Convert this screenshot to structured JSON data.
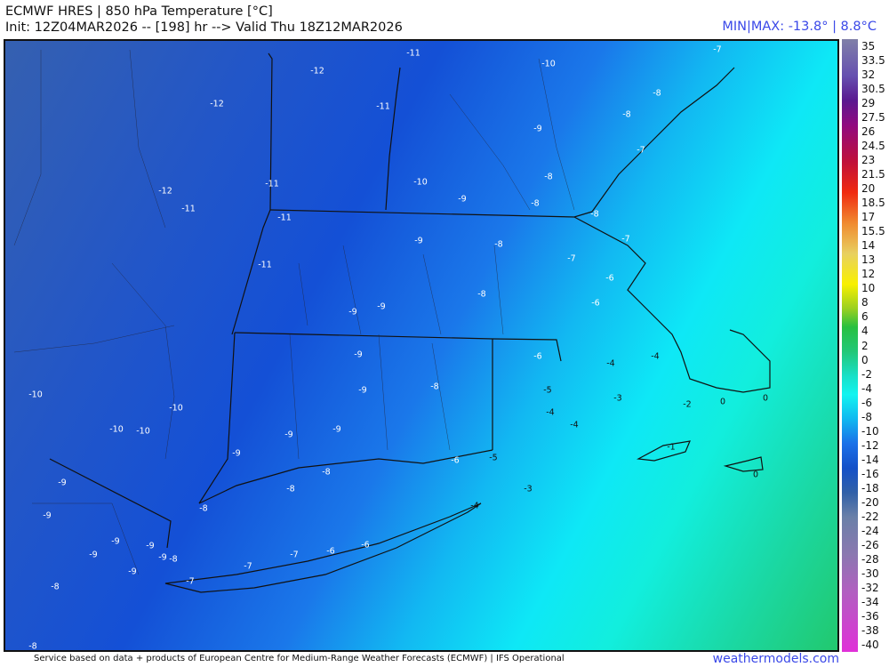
{
  "header": {
    "title": "ECMWF HRES | 850 hPa Temperature [°C]",
    "subtitle": "Init: 12Z04MAR2026 -- [198] hr --> Valid Thu 18Z12MAR2026",
    "minmax": "MIN|MAX: -13.8° | 8.8°C"
  },
  "colorbar": {
    "ticks": [
      "35",
      "33.5",
      "32",
      "30.5",
      "29",
      "27.5",
      "26",
      "24.5",
      "23",
      "21.5",
      "20",
      "18.5",
      "17",
      "15.5",
      "14",
      "13",
      "12",
      "10",
      "8",
      "6",
      "4",
      "2",
      "0",
      "-2",
      "-4",
      "-6",
      "-8",
      "-10",
      "-12",
      "-14",
      "-16",
      "-18",
      "-20",
      "-22",
      "-24",
      "-26",
      "-28",
      "-30",
      "-32",
      "-34",
      "-36",
      "-38",
      "-40"
    ]
  },
  "map": {
    "labels": [
      "-12",
      "-11",
      "-10",
      "-7",
      "-12",
      "-11",
      "-8",
      "-8",
      "-9",
      "-7",
      "-12",
      "-11",
      "-11",
      "-10",
      "-9",
      "-8",
      "-8",
      "-8",
      "-11",
      "-9",
      "-8",
      "-7",
      "-11",
      "-7",
      "-6",
      "-8",
      "-6",
      "-9",
      "-9",
      "-6",
      "-4",
      "-4",
      "-9",
      "-9",
      "-8",
      "-5",
      "-3",
      "-2",
      "0",
      "0",
      "-10",
      "-10",
      "-10",
      "-10",
      "-9",
      "-9",
      "-9",
      "-1",
      "-8",
      "-6",
      "-5",
      "-9",
      "-8",
      "-9",
      "-8",
      "-4",
      "-3",
      "0",
      "-9",
      "-9",
      "-9",
      "-9",
      "-8",
      "-9",
      "-7",
      "-7",
      "-6",
      "-6",
      "-7",
      "-8",
      "-8",
      "-4",
      "-4"
    ]
  },
  "footer": {
    "credit": "Service based on data + products of European Centre for Medium-Range Weather Forecasts (ECMWF) | IFS Operational",
    "brand": "weathermodels.com"
  }
}
